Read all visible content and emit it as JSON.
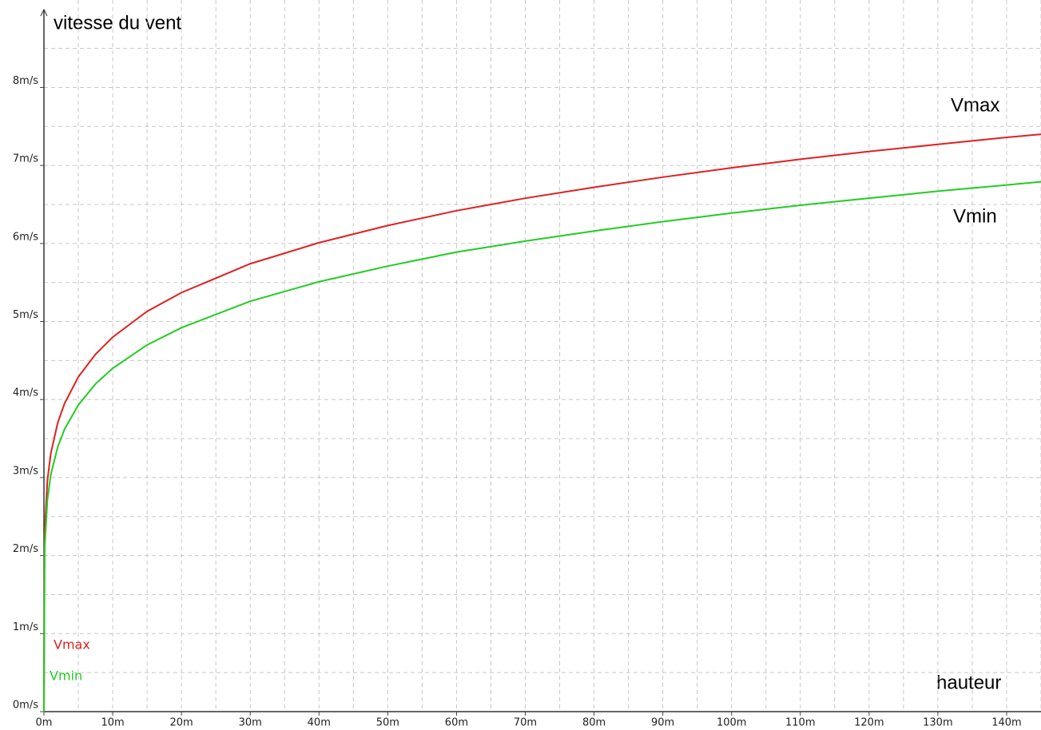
{
  "chart_data": {
    "type": "line",
    "y_axis_label": "vitesse du vent",
    "x_axis_label": "hauteur",
    "x": [
      0,
      0.1,
      0.5,
      1,
      2,
      3,
      5,
      7.5,
      10,
      15,
      20,
      30,
      40,
      50,
      60,
      70,
      80,
      90,
      100,
      110,
      120,
      130,
      140,
      145
    ],
    "series": [
      {
        "name": "Vmax",
        "color": "#e02020",
        "values": [
          0,
          2.28,
          2.96,
          3.31,
          3.7,
          3.95,
          4.29,
          4.58,
          4.8,
          5.13,
          5.37,
          5.74,
          6.01,
          6.23,
          6.42,
          6.58,
          6.72,
          6.85,
          6.97,
          7.08,
          7.18,
          7.27,
          7.36,
          7.4
        ]
      },
      {
        "name": "Vmin",
        "color": "#22cc22",
        "values": [
          0,
          2.09,
          2.71,
          3.04,
          3.39,
          3.62,
          3.93,
          4.2,
          4.4,
          4.7,
          4.92,
          5.26,
          5.51,
          5.71,
          5.89,
          6.03,
          6.16,
          6.28,
          6.39,
          6.49,
          6.58,
          6.67,
          6.75,
          6.79
        ]
      }
    ],
    "annotations": [
      {
        "text": "Vmax"
      },
      {
        "text": "Vmin"
      }
    ],
    "xlim": [
      0,
      145
    ],
    "ylim": [
      0,
      9.1
    ],
    "xticks": [
      {
        "value": 0,
        "label": "0m"
      },
      {
        "value": 10,
        "label": "10m"
      },
      {
        "value": 20,
        "label": "20m"
      },
      {
        "value": 30,
        "label": "30m"
      },
      {
        "value": 40,
        "label": "40m"
      },
      {
        "value": 50,
        "label": "50m"
      },
      {
        "value": 60,
        "label": "60m"
      },
      {
        "value": 70,
        "label": "70m"
      },
      {
        "value": 80,
        "label": "80m"
      },
      {
        "value": 90,
        "label": "90m"
      },
      {
        "value": 100,
        "label": "100m"
      },
      {
        "value": 110,
        "label": "110m"
      },
      {
        "value": 120,
        "label": "120m"
      },
      {
        "value": 130,
        "label": "130m"
      },
      {
        "value": 140,
        "label": "140m"
      }
    ],
    "yticks": [
      {
        "value": 0,
        "label": "0m/s"
      },
      {
        "value": 1,
        "label": "1m/s"
      },
      {
        "value": 2,
        "label": "2m/s"
      },
      {
        "value": 3,
        "label": "3m/s"
      },
      {
        "value": 4,
        "label": "4m/s"
      },
      {
        "value": 5,
        "label": "5m/s"
      },
      {
        "value": 6,
        "label": "6m/s"
      },
      {
        "value": 7,
        "label": "7m/s"
      },
      {
        "value": 8,
        "label": "8m/s"
      }
    ],
    "xminorticks": [
      5,
      15,
      25,
      35,
      45,
      55,
      65,
      75,
      85,
      95,
      105,
      115,
      125,
      135,
      145
    ],
    "yminorticks": [
      0.5,
      1.5,
      2.5,
      3.5,
      4.5,
      5.5,
      6.5,
      7.5,
      8.5
    ],
    "grid": true
  }
}
